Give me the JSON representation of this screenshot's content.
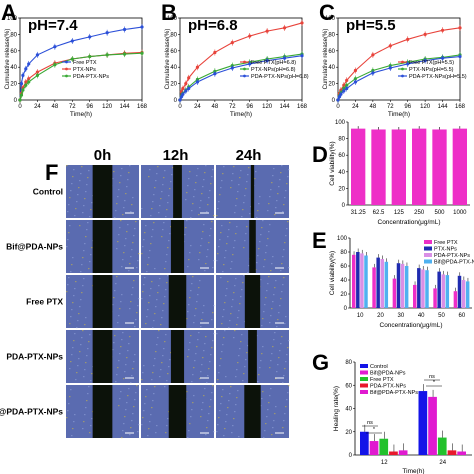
{
  "panels": {
    "A": "A",
    "B": "B",
    "C": "C",
    "D": "D",
    "E": "E",
    "F": "F",
    "G": "G"
  },
  "colors": {
    "red": "#e8433b",
    "blue": "#2b4fd8",
    "green": "#39a935",
    "lime": "#7ed957",
    "magenta": "#ee2fc7",
    "navy": "#1f2bb0",
    "pink": "#d98fe6",
    "purple": "#9d4fc7",
    "cyan": "#4fb1f0",
    "gBlue": "#1414e8",
    "gGreen": "#22c12c",
    "gRed": "#e8182c",
    "gMag": "#e01ad0",
    "cellBg": "#5a6bb0",
    "gap": "#0c120a"
  },
  "release": {
    "xticks": [
      "0",
      "24",
      "48",
      "72",
      "96",
      "120",
      "144",
      "168"
    ],
    "yticks": [
      "0",
      "20",
      "40",
      "60",
      "80",
      "100"
    ],
    "xlabel": "Time(h)",
    "ylabel": "Cumulative release(%)",
    "x": [
      0,
      2,
      4,
      8,
      12,
      24,
      48,
      72,
      96,
      120,
      144,
      168
    ],
    "A": {
      "title": "pH=7.4",
      "legend": [
        "Free PTX",
        "PTX-NPs",
        "PDA-PTX-NPs"
      ],
      "series": [
        {
          "color": "blue",
          "values": [
            0,
            20,
            30,
            38,
            44,
            55,
            65,
            72,
            77,
            82,
            86,
            89
          ]
        },
        {
          "color": "red",
          "values": [
            0,
            8,
            15,
            22,
            26,
            34,
            45,
            50,
            53,
            55,
            57,
            58
          ]
        },
        {
          "color": "green",
          "values": [
            0,
            6,
            12,
            18,
            22,
            30,
            43,
            50,
            53,
            55,
            56,
            57
          ]
        }
      ]
    },
    "B": {
      "title": "pH=6.8",
      "legend": [
        "Free PTX(pH=6.8)",
        "PTX-NPs(pH=6.8)",
        "PDA-PTX-NPs(pH=6.8)"
      ],
      "series": [
        {
          "color": "red",
          "values": [
            0,
            10,
            14,
            20,
            27,
            40,
            58,
            70,
            78,
            84,
            88,
            94
          ]
        },
        {
          "color": "green",
          "values": [
            0,
            5,
            8,
            12,
            16,
            25,
            35,
            42,
            46,
            50,
            53,
            56
          ]
        },
        {
          "color": "blue",
          "values": [
            0,
            4,
            7,
            11,
            14,
            22,
            32,
            39,
            44,
            48,
            51,
            54
          ]
        }
      ]
    },
    "C": {
      "title": "pH=5.5",
      "legend": [
        "Free PTX(pH=5.5)",
        "PTX-NPs(pH=5.5)",
        "PDA-PTX-NPs(pH=5.5)"
      ],
      "series": [
        {
          "color": "red",
          "values": [
            0,
            8,
            12,
            18,
            24,
            36,
            55,
            66,
            74,
            80,
            85,
            88
          ]
        },
        {
          "color": "green",
          "values": [
            0,
            5,
            9,
            14,
            18,
            26,
            36,
            42,
            46,
            50,
            52,
            55
          ]
        },
        {
          "color": "blue",
          "values": [
            0,
            4,
            7,
            11,
            14,
            22,
            33,
            39,
            44,
            48,
            51,
            53
          ]
        }
      ]
    }
  },
  "D": {
    "ylabel": "Cell viability(%)",
    "xlabel": "Concentration(μg/mL)",
    "yticks": [
      "0",
      "20",
      "40",
      "60",
      "80",
      "100"
    ],
    "categories": [
      "31.25",
      "62.5",
      "125",
      "250",
      "500",
      "1000"
    ],
    "values": [
      92,
      91,
      91,
      92,
      91,
      92
    ],
    "color": "magenta"
  },
  "E": {
    "ylabel": "Cell viability(%)",
    "xlabel": "Concentration(μg/mL)",
    "yticks": [
      "0",
      "20",
      "40",
      "60",
      "80",
      "100"
    ],
    "categories": [
      "10",
      "20",
      "30",
      "40",
      "50",
      "60"
    ],
    "legend": [
      "Free PTX",
      "PTX-NPs",
      "PDA-PTX-NPs",
      "Bif@PDA-PTX-NPs"
    ],
    "series": [
      {
        "name": "Free PTX",
        "color": "magenta",
        "values": [
          76,
          58,
          42,
          33,
          28,
          24
        ]
      },
      {
        "name": "PTX-NPs",
        "color": "navy",
        "values": [
          80,
          72,
          64,
          57,
          52,
          46
        ]
      },
      {
        "name": "PDA-PTX-NPs",
        "color": "pink",
        "values": [
          78,
          70,
          63,
          55,
          48,
          40
        ]
      },
      {
        "name": "Bif@PDA-PTX-NPs",
        "color": "cyan",
        "values": [
          75,
          66,
          60,
          54,
          47,
          38
        ]
      }
    ]
  },
  "F": {
    "cols": [
      "0h",
      "12h",
      "24h"
    ],
    "rows": [
      "Control",
      "Bif@PDA-NPs",
      "Free PTX",
      "PDA-PTX-NPs",
      "Bif@PDA-PTX-NPs"
    ],
    "gapFraction": [
      [
        0.09,
        0.04,
        0.015
      ],
      [
        0.09,
        0.06,
        0.03
      ],
      [
        0.09,
        0.08,
        0.07
      ],
      [
        0.09,
        0.06,
        0.04
      ],
      [
        0.09,
        0.08,
        0.075
      ]
    ]
  },
  "G": {
    "ylabel": "Healing rate(%)",
    "xlabel": "Time(h)",
    "yticks": [
      "0",
      "20",
      "40",
      "60",
      "80"
    ],
    "categories": [
      "12",
      "24"
    ],
    "legend": [
      "Control",
      "Bif@PDA-NPs",
      "Free PTX",
      "PDA-PTX-NPs",
      "Bif@PDA-PTX-NPs"
    ],
    "series": [
      {
        "name": "Control",
        "color": "gBlue",
        "values": [
          20,
          55
        ]
      },
      {
        "name": "Bif@PDA-NPs",
        "color": "gMag",
        "values": [
          12,
          50
        ]
      },
      {
        "name": "Free PTX",
        "color": "gGreen",
        "values": [
          14,
          15
        ]
      },
      {
        "name": "PDA-PTX-NPs",
        "color": "gRed",
        "values": [
          3,
          4
        ]
      },
      {
        "name": "Bif@PDA-PTX-NPs",
        "color": "gMag",
        "values": [
          4,
          3
        ]
      }
    ],
    "sig": [
      "ns",
      "*",
      "ns",
      "*"
    ]
  }
}
